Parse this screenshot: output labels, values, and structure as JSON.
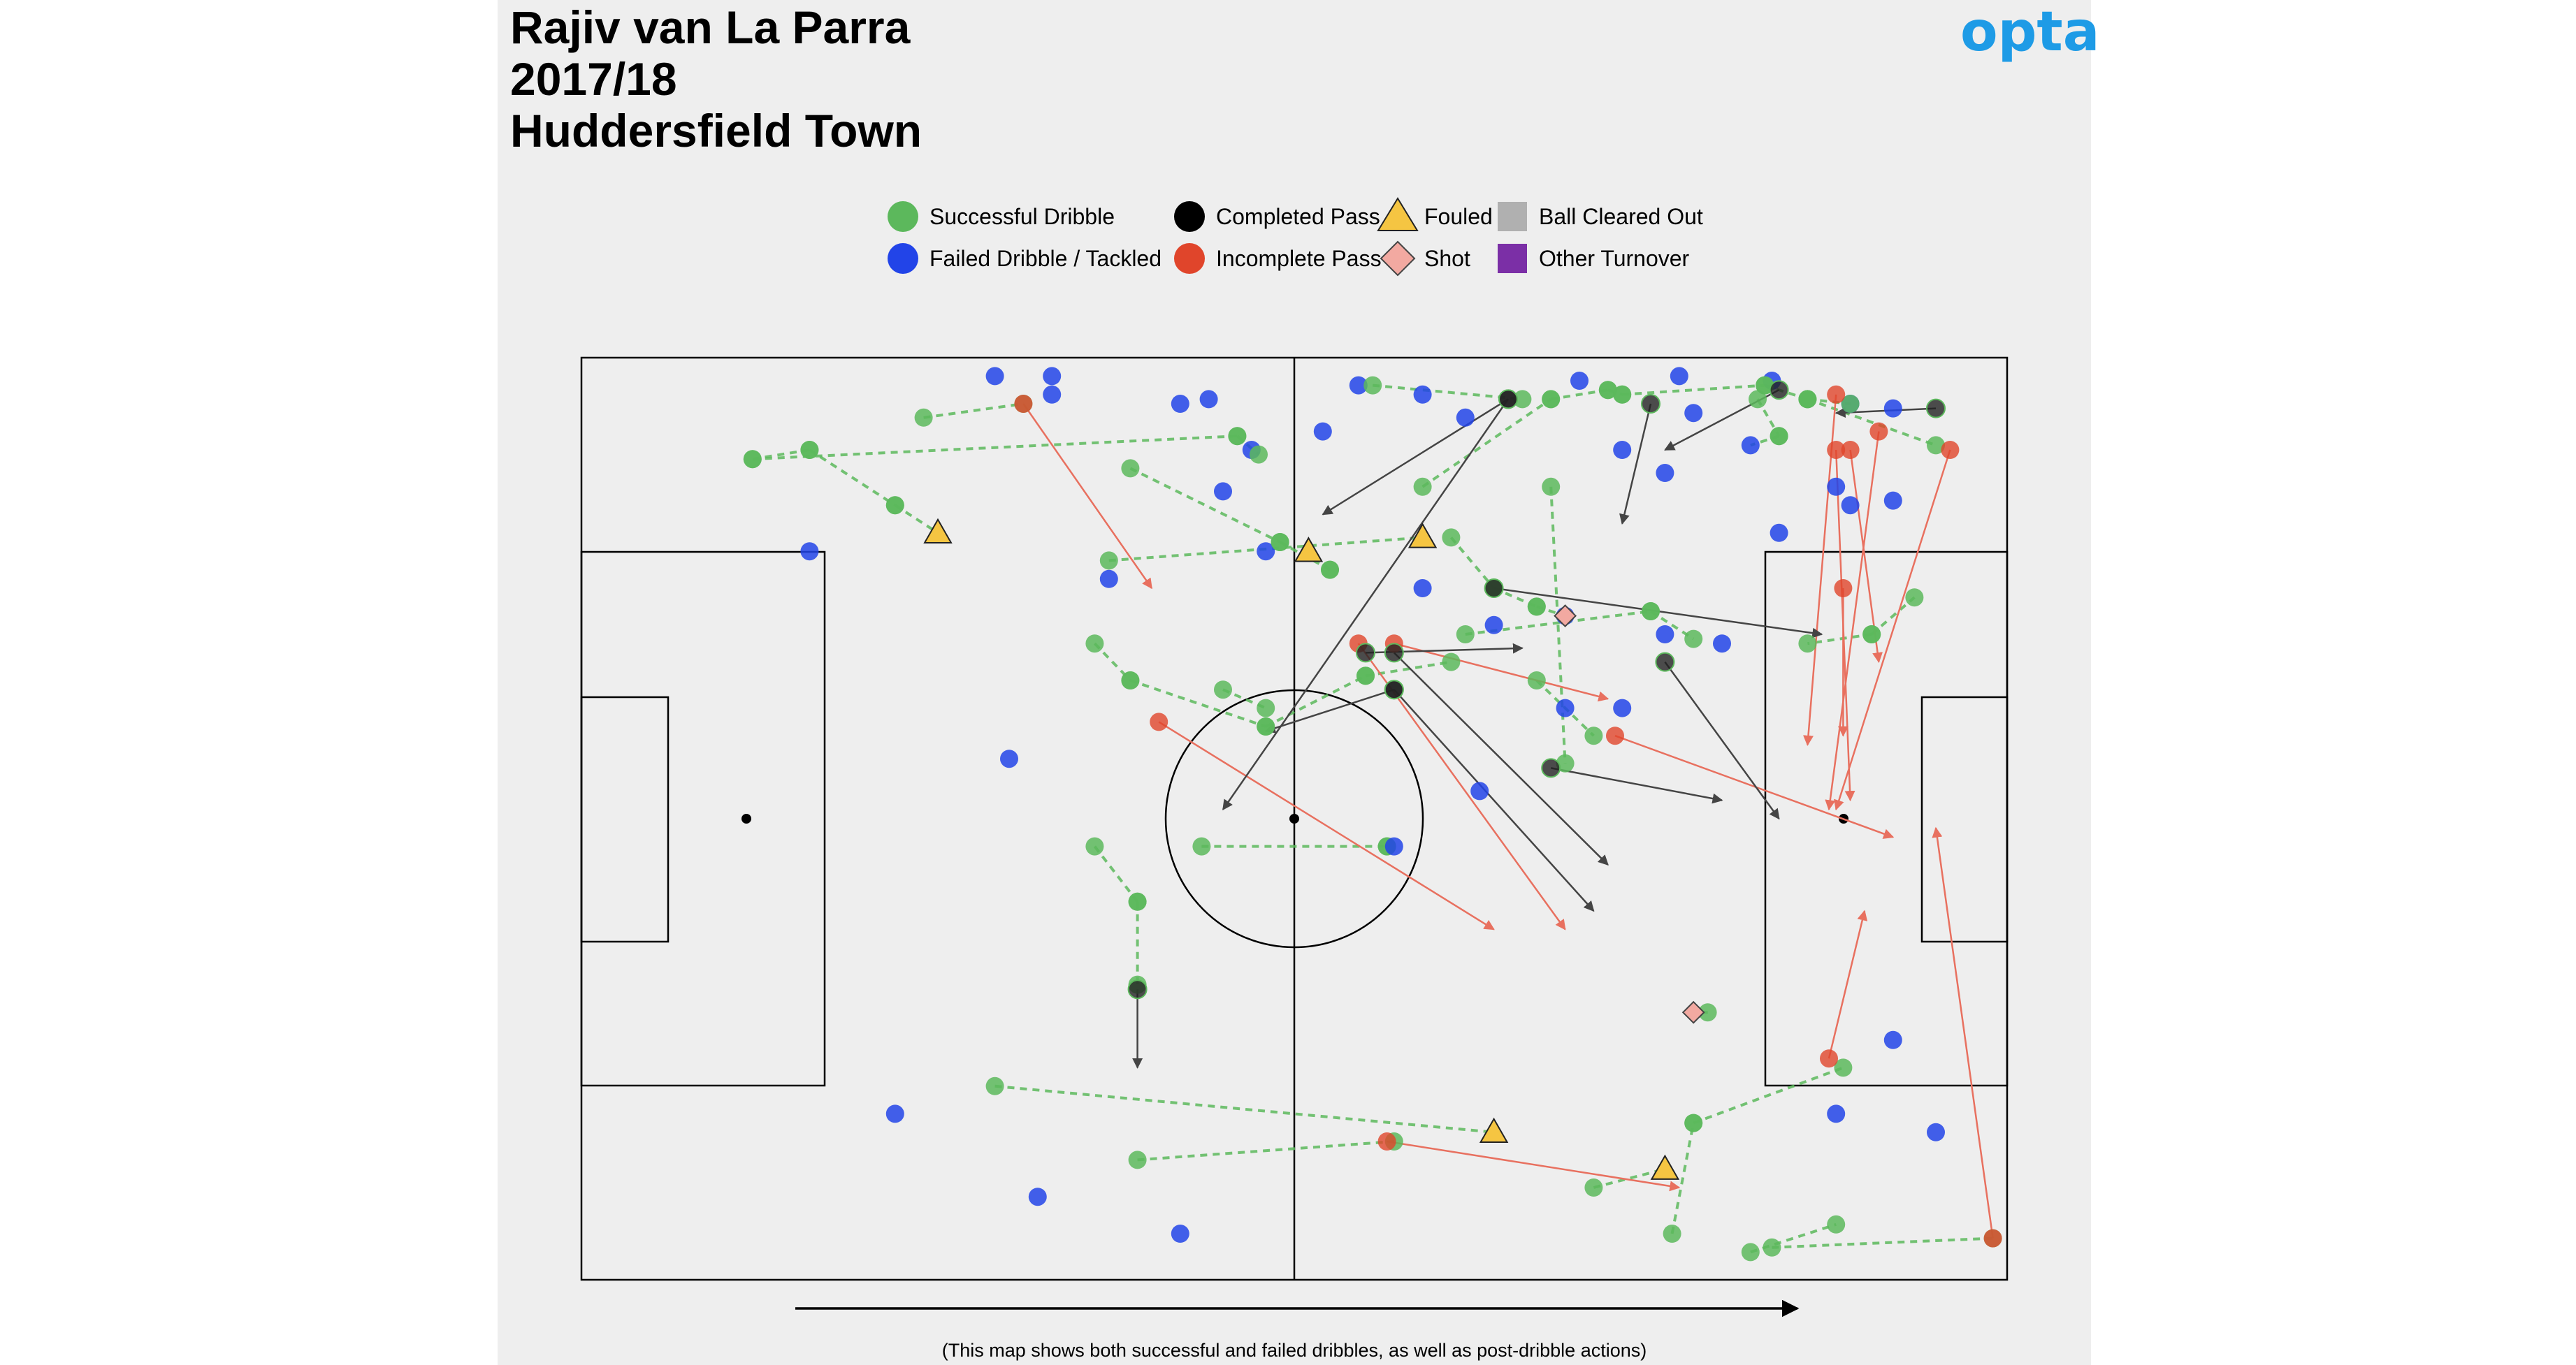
{
  "title": {
    "line1": "Rajiv van La Parra",
    "line2": "2017/18",
    "line3": "Huddersfield Town"
  },
  "brand": {
    "text": "opta",
    "color": "#1e9be6"
  },
  "footnote": "(This map shows both successful and failed dribbles, as well as post-dribble actions)",
  "legend": [
    {
      "label": "Successful Dribble",
      "symbol": "circle",
      "color": "#5cb85c"
    },
    {
      "label": "Failed Dribble / Tackled",
      "symbol": "circle",
      "color": "#2244e8"
    },
    {
      "label": "Completed Pass",
      "symbol": "circle",
      "color": "#000000"
    },
    {
      "label": "Incomplete Pass",
      "symbol": "circle",
      "color": "#e0452b"
    },
    {
      "label": "Fouled",
      "symbol": "triangle",
      "color": "#f5c542"
    },
    {
      "label": "Shot",
      "symbol": "diamond",
      "color": "#f2a9a1"
    },
    {
      "label": "Ball Cleared Out",
      "symbol": "square",
      "color": "#b0b0b0"
    },
    {
      "label": "Other Turnover",
      "symbol": "square",
      "color": "#7b2fa6"
    }
  ],
  "chart_data": {
    "type": "scatter",
    "pitch": {
      "length": 100,
      "width": 100,
      "attack_direction": "left-to-right"
    },
    "dribbles": [
      {
        "from": [
          12,
          11
        ],
        "to": [
          16,
          10
        ],
        "result": "success"
      },
      {
        "from": [
          16,
          10
        ],
        "to": [
          22,
          16
        ],
        "result": "success"
      },
      {
        "from": [
          22,
          16
        ],
        "to": [
          25,
          19
        ],
        "result": "fouled"
      },
      {
        "from": [
          12,
          11
        ],
        "to": [
          46,
          8.5
        ],
        "result": "success"
      },
      {
        "from": [
          46,
          8.5
        ],
        "to": [
          47.5,
          10.5
        ],
        "result": "success"
      },
      {
        "from": [
          24,
          6.5
        ],
        "to": [
          31,
          5
        ],
        "result": "success"
      },
      {
        "from": [
          38.5,
          12
        ],
        "to": [
          49,
          20
        ],
        "result": "success"
      },
      {
        "from": [
          49,
          20
        ],
        "to": [
          52.5,
          23
        ],
        "result": "success"
      },
      {
        "from": [
          52.5,
          23
        ],
        "to": [
          51,
          21
        ],
        "result": "fouled"
      },
      {
        "from": [
          37,
          22
        ],
        "to": [
          59,
          19.5
        ],
        "result": "fouled"
      },
      {
        "from": [
          55.5,
          3
        ],
        "to": [
          66,
          4.5
        ],
        "result": "success"
      },
      {
        "from": [
          59,
          14
        ],
        "to": [
          68,
          4.5
        ],
        "result": "success"
      },
      {
        "from": [
          68,
          4.5
        ],
        "to": [
          72,
          3.5
        ],
        "result": "success"
      },
      {
        "from": [
          72,
          3.5
        ],
        "to": [
          73,
          4
        ],
        "result": "success"
      },
      {
        "from": [
          73,
          4
        ],
        "to": [
          83,
          3
        ],
        "result": "success"
      },
      {
        "from": [
          83,
          3
        ],
        "to": [
          86,
          4.5
        ],
        "result": "success"
      },
      {
        "from": [
          86,
          4.5
        ],
        "to": [
          95,
          9.5
        ],
        "result": "success"
      },
      {
        "from": [
          82.5,
          4.5
        ],
        "to": [
          84,
          8.5
        ],
        "result": "success"
      },
      {
        "from": [
          84,
          8.5
        ],
        "to": [
          82,
          9.5
        ],
        "result": "failed"
      },
      {
        "from": [
          86,
          4.5
        ],
        "to": [
          89,
          5
        ],
        "result": "success"
      },
      {
        "from": [
          68,
          14
        ],
        "to": [
          69,
          44
        ],
        "result": "success"
      },
      {
        "from": [
          61,
          19.5
        ],
        "to": [
          64,
          25
        ],
        "result": "success"
      },
      {
        "from": [
          64,
          25
        ],
        "to": [
          67,
          27
        ],
        "result": "success"
      },
      {
        "from": [
          67,
          27
        ],
        "to": [
          69,
          28
        ],
        "result": "shot"
      },
      {
        "from": [
          62,
          30
        ],
        "to": [
          75,
          27.5
        ],
        "result": "success"
      },
      {
        "from": [
          75,
          27.5
        ],
        "to": [
          78,
          30.5
        ],
        "result": "success"
      },
      {
        "from": [
          67,
          35
        ],
        "to": [
          71,
          41
        ],
        "result": "success"
      },
      {
        "from": [
          90.5,
          30
        ],
        "to": [
          86,
          31
        ],
        "result": "success"
      },
      {
        "from": [
          90.5,
          30
        ],
        "to": [
          93.5,
          26
        ],
        "result": "success"
      },
      {
        "from": [
          36,
          31
        ],
        "to": [
          38.5,
          35
        ],
        "result": "success"
      },
      {
        "from": [
          38.5,
          35
        ],
        "to": [
          48,
          40
        ],
        "result": "success"
      },
      {
        "from": [
          48,
          40
        ],
        "to": [
          55,
          34.5
        ],
        "result": "success"
      },
      {
        "from": [
          55,
          34.5
        ],
        "to": [
          61,
          33
        ],
        "result": "success"
      },
      {
        "from": [
          45,
          36
        ],
        "to": [
          48,
          38
        ],
        "result": "success"
      },
      {
        "from": [
          43.5,
          53
        ],
        "to": [
          56.5,
          53
        ],
        "result": "success"
      },
      {
        "from": [
          56.5,
          53
        ],
        "to": [
          57,
          53
        ],
        "result": "failed"
      },
      {
        "from": [
          36,
          53
        ],
        "to": [
          39,
          59
        ],
        "result": "success"
      },
      {
        "from": [
          39,
          59
        ],
        "to": [
          39,
          68
        ],
        "result": "success"
      },
      {
        "from": [
          29,
          79
        ],
        "to": [
          64,
          84
        ],
        "result": "fouled"
      },
      {
        "from": [
          39,
          87
        ],
        "to": [
          57,
          85
        ],
        "result": "success"
      },
      {
        "from": [
          71,
          90
        ],
        "to": [
          76,
          88
        ],
        "result": "fouled"
      },
      {
        "from": [
          76.5,
          95
        ],
        "to": [
          78,
          83
        ],
        "result": "success"
      },
      {
        "from": [
          78,
          83
        ],
        "to": [
          88.5,
          77
        ],
        "result": "success"
      },
      {
        "from": [
          82,
          97
        ],
        "to": [
          88,
          94
        ],
        "result": "success"
      },
      {
        "from": [
          83.5,
          96.5
        ],
        "to": [
          99,
          95.5
        ],
        "result": "success"
      },
      {
        "from": [
          79,
          71
        ],
        "to": [
          78,
          71
        ],
        "result": "shot"
      }
    ],
    "passes": [
      {
        "from": [
          31,
          5
        ],
        "to": [
          40,
          25
        ],
        "result": "incomplete"
      },
      {
        "from": [
          40.5,
          39.5
        ],
        "to": [
          64,
          62
        ],
        "result": "incomplete"
      },
      {
        "from": [
          54.5,
          31
        ],
        "to": [
          69,
          62
        ],
        "result": "incomplete"
      },
      {
        "from": [
          57,
          31
        ],
        "to": [
          72,
          37
        ],
        "result": "incomplete"
      },
      {
        "from": [
          72.5,
          41
        ],
        "to": [
          92,
          52
        ],
        "result": "incomplete"
      },
      {
        "from": [
          56.5,
          85
        ],
        "to": [
          77,
          90
        ],
        "result": "incomplete"
      },
      {
        "from": [
          87.5,
          76
        ],
        "to": [
          90,
          60
        ],
        "result": "incomplete"
      },
      {
        "from": [
          99,
          95.5
        ],
        "to": [
          95,
          51
        ],
        "result": "incomplete"
      },
      {
        "from": [
          88,
          4
        ],
        "to": [
          86,
          42
        ],
        "result": "incomplete"
      },
      {
        "from": [
          88,
          10
        ],
        "to": [
          89,
          48
        ],
        "result": "incomplete"
      },
      {
        "from": [
          88.5,
          25
        ],
        "to": [
          88.5,
          41
        ],
        "result": "incomplete"
      },
      {
        "from": [
          91,
          8
        ],
        "to": [
          87.5,
          49
        ],
        "result": "incomplete"
      },
      {
        "from": [
          89,
          10
        ],
        "to": [
          91,
          33
        ],
        "result": "incomplete"
      },
      {
        "from": [
          96,
          10
        ],
        "to": [
          88,
          49
        ],
        "result": "incomplete"
      },
      {
        "from": [
          65,
          4.5
        ],
        "to": [
          52,
          17
        ],
        "result": "complete"
      },
      {
        "from": [
          65,
          4.5
        ],
        "to": [
          45,
          49
        ],
        "result": "complete"
      },
      {
        "from": [
          75,
          5
        ],
        "to": [
          73,
          18
        ],
        "result": "complete"
      },
      {
        "from": [
          84,
          3.5
        ],
        "to": [
          76,
          10
        ],
        "result": "complete"
      },
      {
        "from": [
          95,
          5.5
        ],
        "to": [
          88,
          6
        ],
        "result": "complete"
      },
      {
        "from": [
          64,
          25
        ],
        "to": [
          87,
          30
        ],
        "result": "complete"
      },
      {
        "from": [
          55,
          32
        ],
        "to": [
          66,
          31.5
        ],
        "result": "complete"
      },
      {
        "from": [
          57,
          32
        ],
        "to": [
          72,
          55
        ],
        "result": "complete"
      },
      {
        "from": [
          57,
          36
        ],
        "to": [
          71,
          60
        ],
        "result": "complete"
      },
      {
        "from": [
          57,
          36
        ],
        "to": [
          48,
          40.5
        ],
        "result": "complete"
      },
      {
        "from": [
          68,
          44.5
        ],
        "to": [
          80,
          48
        ],
        "result": "complete"
      },
      {
        "from": [
          76,
          33
        ],
        "to": [
          84,
          50
        ],
        "result": "complete"
      },
      {
        "from": [
          39,
          68.5
        ],
        "to": [
          39,
          77
        ],
        "result": "complete"
      }
    ],
    "failed_points": [
      [
        29,
        2
      ],
      [
        33,
        2
      ],
      [
        33,
        4
      ],
      [
        42,
        5
      ],
      [
        44,
        4.5
      ],
      [
        54.5,
        3
      ],
      [
        59,
        4
      ],
      [
        62,
        6.5
      ],
      [
        70,
        2.5
      ],
      [
        77,
        2
      ],
      [
        78,
        6
      ],
      [
        83.5,
        2.5
      ],
      [
        89,
        5
      ],
      [
        92,
        5.5
      ],
      [
        47,
        10
      ],
      [
        52,
        8
      ],
      [
        73,
        10
      ],
      [
        76,
        12.5
      ],
      [
        88,
        14
      ],
      [
        89,
        16
      ],
      [
        92,
        15.5
      ],
      [
        84,
        19
      ],
      [
        45,
        14.5
      ],
      [
        48,
        21
      ],
      [
        37,
        24
      ],
      [
        59,
        25
      ],
      [
        64,
        29
      ],
      [
        69,
        28
      ],
      [
        76,
        30
      ],
      [
        80,
        31
      ],
      [
        69,
        38
      ],
      [
        73,
        38
      ],
      [
        16,
        21
      ],
      [
        30,
        43.5
      ],
      [
        63,
        47
      ],
      [
        92,
        74
      ],
      [
        88,
        82
      ],
      [
        95,
        84
      ],
      [
        22,
        82
      ],
      [
        32,
        91
      ],
      [
        42,
        95
      ]
    ]
  }
}
